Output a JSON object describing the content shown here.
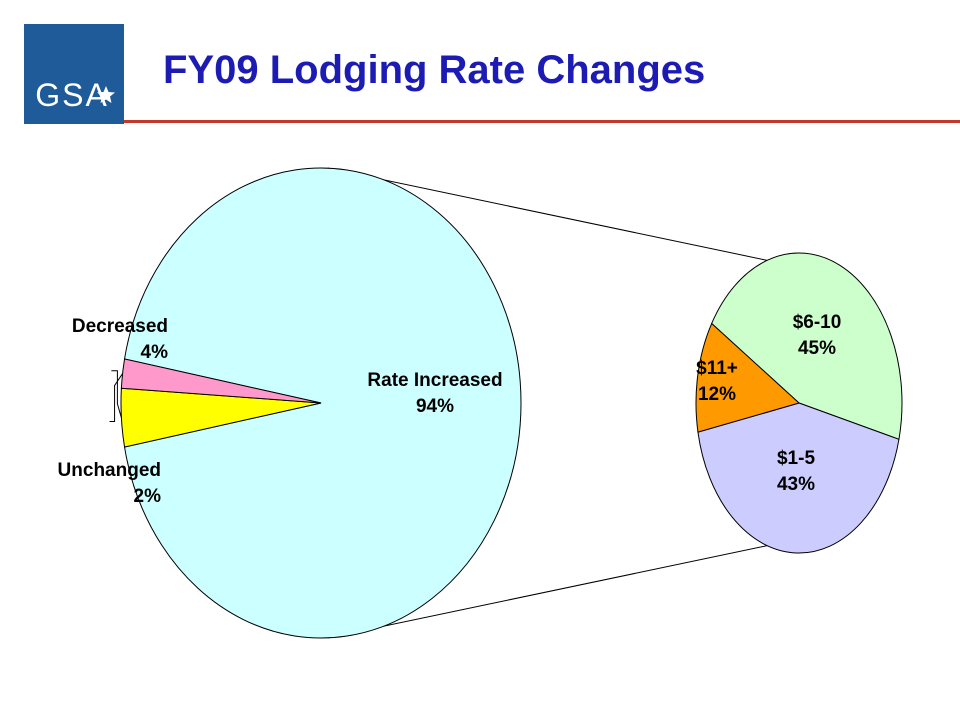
{
  "logo": {
    "text": "GSA"
  },
  "title": "FY09 Lodging Rate Changes",
  "colors": {
    "logo_bg": "#1f5a99",
    "title": "#1c1cb4",
    "rule": "#c0392b",
    "rate_increased": "#ccffff",
    "decreased": "#ffff00",
    "unchanged": "#ff99cc",
    "band_6_10": "#ccffcc",
    "band_11_plus": "#ff9900",
    "band_1_5": "#ccccff"
  },
  "chart_data": {
    "type": "pie",
    "subtype": "pie-of-pie",
    "main_pie": {
      "slices": [
        {
          "label": "Rate Increased",
          "pct_label": "94%",
          "value": 94
        },
        {
          "label": "Decreased",
          "pct_label": "4%",
          "value": 4
        },
        {
          "label": "Unchanged",
          "pct_label": "2%",
          "value": 2
        }
      ]
    },
    "breakout_pie": {
      "of": "Rate Increased",
      "slices": [
        {
          "label": "$6-10",
          "pct_label": "45%",
          "value": 45
        },
        {
          "label": "$1-5",
          "pct_label": "43%",
          "value": 43
        },
        {
          "label": "$11+",
          "pct_label": "12%",
          "value": 12
        }
      ]
    }
  }
}
